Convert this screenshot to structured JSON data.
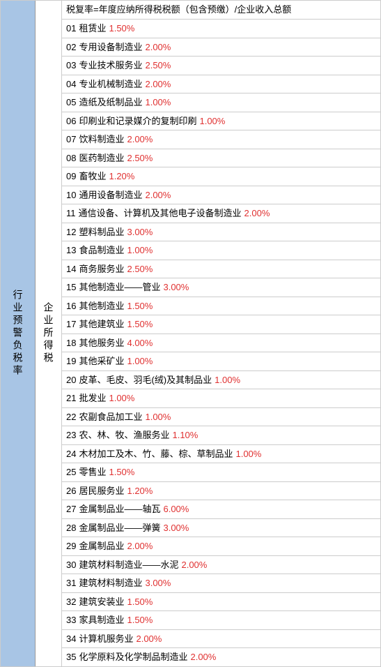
{
  "left_header": "行业预警负税率",
  "mid_header": "企业所得税",
  "formula": "税复率=年度应纳所得税税额（包含预缴）/企业收入总额",
  "rows": [
    {
      "num": "01",
      "label": "租赁业",
      "rate": "1.50%"
    },
    {
      "num": "02",
      "label": "专用设备制造业",
      "rate": "2.00%"
    },
    {
      "num": "03",
      "label": "专业技术服务业",
      "rate": "2.50%"
    },
    {
      "num": "04",
      "label": "专业机械制造业",
      "rate": "2.00%"
    },
    {
      "num": "05",
      "label": "造纸及纸制品业",
      "rate": "1.00%"
    },
    {
      "num": "06",
      "label": "印刷业和记录媒介的复制印刷",
      "rate": "1.00%"
    },
    {
      "num": "07",
      "label": "饮料制造业",
      "rate": "2.00%"
    },
    {
      "num": "08",
      "label": "医药制造业",
      "rate": "2.50%"
    },
    {
      "num": "09",
      "label": "畜牧业",
      "rate": "1.20%"
    },
    {
      "num": "10",
      "label": "通用设备制造业",
      "rate": "2.00%"
    },
    {
      "num": "11",
      "label": "通信设备、计算机及其他电子设备制造业",
      "rate": "2.00%"
    },
    {
      "num": "12",
      "label": "塑料制品业",
      "rate": "3.00%"
    },
    {
      "num": "13",
      "label": "食品制造业",
      "rate": "1.00%"
    },
    {
      "num": "14",
      "label": "商务服务业",
      "rate": "2.50%"
    },
    {
      "num": "15",
      "label": "其他制造业——管业",
      "rate": "3.00%"
    },
    {
      "num": "16",
      "label": "其他制造业",
      "rate": "1.50%"
    },
    {
      "num": "17",
      "label": "其他建筑业",
      "rate": "1.50%"
    },
    {
      "num": "18",
      "label": "其他服务业",
      "rate": "4.00%"
    },
    {
      "num": "19",
      "label": "其他采矿业",
      "rate": "1.00%"
    },
    {
      "num": "20",
      "label": "皮革、毛皮、羽毛(绒)及其制品业",
      "rate": "1.00%"
    },
    {
      "num": "21",
      "label": "批发业",
      "rate": "1.00%"
    },
    {
      "num": "22",
      "label": "农副食品加工业",
      "rate": "1.00%"
    },
    {
      "num": "23",
      "label": "农、林、牧、渔服务业",
      "rate": "1.10%"
    },
    {
      "num": "24",
      "label": "木材加工及木、竹、藤、棕、草制品业",
      "rate": "1.00%"
    },
    {
      "num": "25",
      "label": "零售业",
      "rate": "1.50%"
    },
    {
      "num": "26",
      "label": "居民服务业",
      "rate": "1.20%"
    },
    {
      "num": "27",
      "label": "金属制品业——轴瓦",
      "rate": "6.00%"
    },
    {
      "num": "28",
      "label": "金属制品业——弹簧",
      "rate": "3.00%"
    },
    {
      "num": "29",
      "label": "金属制品业",
      "rate": "2.00%"
    },
    {
      "num": "30",
      "label": "建筑材料制造业——水泥",
      "rate": "2.00%"
    },
    {
      "num": "31",
      "label": "建筑材料制造业",
      "rate": "3.00%"
    },
    {
      "num": "32",
      "label": "建筑安装业",
      "rate": "1.50%"
    },
    {
      "num": "33",
      "label": "家具制造业",
      "rate": "1.50%"
    },
    {
      "num": "34",
      "label": "计算机服务业",
      "rate": "2.00%"
    },
    {
      "num": "35",
      "label": "化学原料及化学制品制造业",
      "rate": "2.00%"
    }
  ],
  "colors": {
    "left_bg": "#a8c5e5",
    "rate_color": "#e03030",
    "border_color": "#cccccc",
    "text_color": "#000000"
  }
}
